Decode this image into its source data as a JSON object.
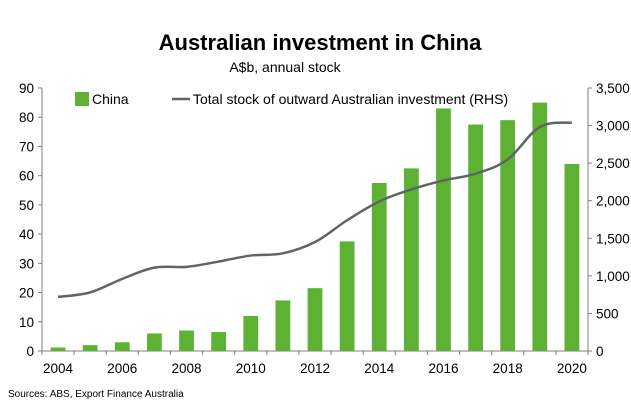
{
  "chart_data": {
    "type": "bar",
    "title": "Australian investment in China",
    "subtitle": "A$b, annual stock",
    "source": "Sources: ABS, Export Finance Australia",
    "x": [
      2004,
      2005,
      2006,
      2007,
      2008,
      2009,
      2010,
      2011,
      2012,
      2013,
      2014,
      2015,
      2016,
      2017,
      2018,
      2019,
      2020
    ],
    "x_tick_labels": [
      "2004",
      "2006",
      "2008",
      "2010",
      "2012",
      "2014",
      "2016",
      "2018",
      "2020"
    ],
    "ylim_left": [
      0,
      90
    ],
    "y_ticks_left": [
      "0",
      "10",
      "20",
      "30",
      "40",
      "50",
      "60",
      "70",
      "80",
      "90"
    ],
    "ylim_right": [
      0,
      3500
    ],
    "y_ticks_right": [
      "0",
      "500",
      "1,000",
      "1,500",
      "2,000",
      "2,500",
      "3,000",
      "3,500"
    ],
    "grid": false,
    "legend_position": "top",
    "series": [
      {
        "name": "China",
        "type": "bar",
        "axis": "left",
        "color": "#5db233",
        "values": [
          1.2,
          2,
          3,
          6,
          7,
          6.5,
          12,
          17.3,
          21.5,
          37.5,
          57.5,
          62.5,
          83,
          77.5,
          79,
          85,
          64
        ]
      },
      {
        "name": "Total stock of outward Australian investment (RHS)",
        "type": "line",
        "axis": "right",
        "color": "#5f6466",
        "values": [
          720,
          780,
          960,
          1110,
          1120,
          1190,
          1270,
          1300,
          1450,
          1740,
          1990,
          2150,
          2270,
          2360,
          2550,
          2980,
          3040
        ]
      }
    ]
  }
}
